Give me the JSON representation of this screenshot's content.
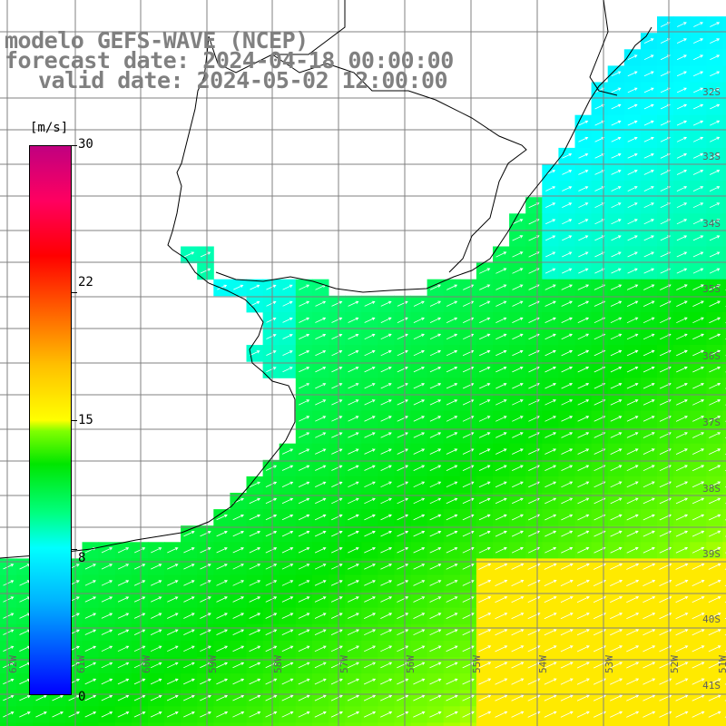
{
  "title": {
    "line1": "modelo GEFS-WAVE (NCEP)",
    "line2": "forecast date: 2024-04-18 00:00:00",
    "line3": "valid date: 2024-05-02 12:00:00"
  },
  "colorbar": {
    "unit": "[m/s]",
    "ticks": [
      "30",
      "22",
      "15",
      "8",
      "0"
    ],
    "min": 0,
    "max": 30
  },
  "lat_labels": [
    "32S",
    "33S",
    "34S",
    "35S",
    "36S",
    "37S",
    "38S",
    "39S",
    "40S",
    "41S"
  ],
  "lon_labels": [
    "62W",
    "61W",
    "60W",
    "59W",
    "58W",
    "57W",
    "56W",
    "55W",
    "54W",
    "53W",
    "52W",
    "51W"
  ],
  "map_extent": {
    "lon_min": -62.2,
    "lon_max": -50.4,
    "lat_min": -41.2,
    "lat_max": -31.5
  },
  "field": {
    "variable": "wind speed (m/s)",
    "typical_range": [
      6,
      16
    ],
    "max_region": "southeast, near 40S 52W, about 15-16 m/s",
    "min_region": "northeast coast near 32S 52W, about 6 m/s",
    "wind_direction": "from southwest toward northeast"
  },
  "colors": {
    "land": "#ffffff",
    "grid": "#808080",
    "coast": "#000000",
    "title_text": "#808080"
  }
}
